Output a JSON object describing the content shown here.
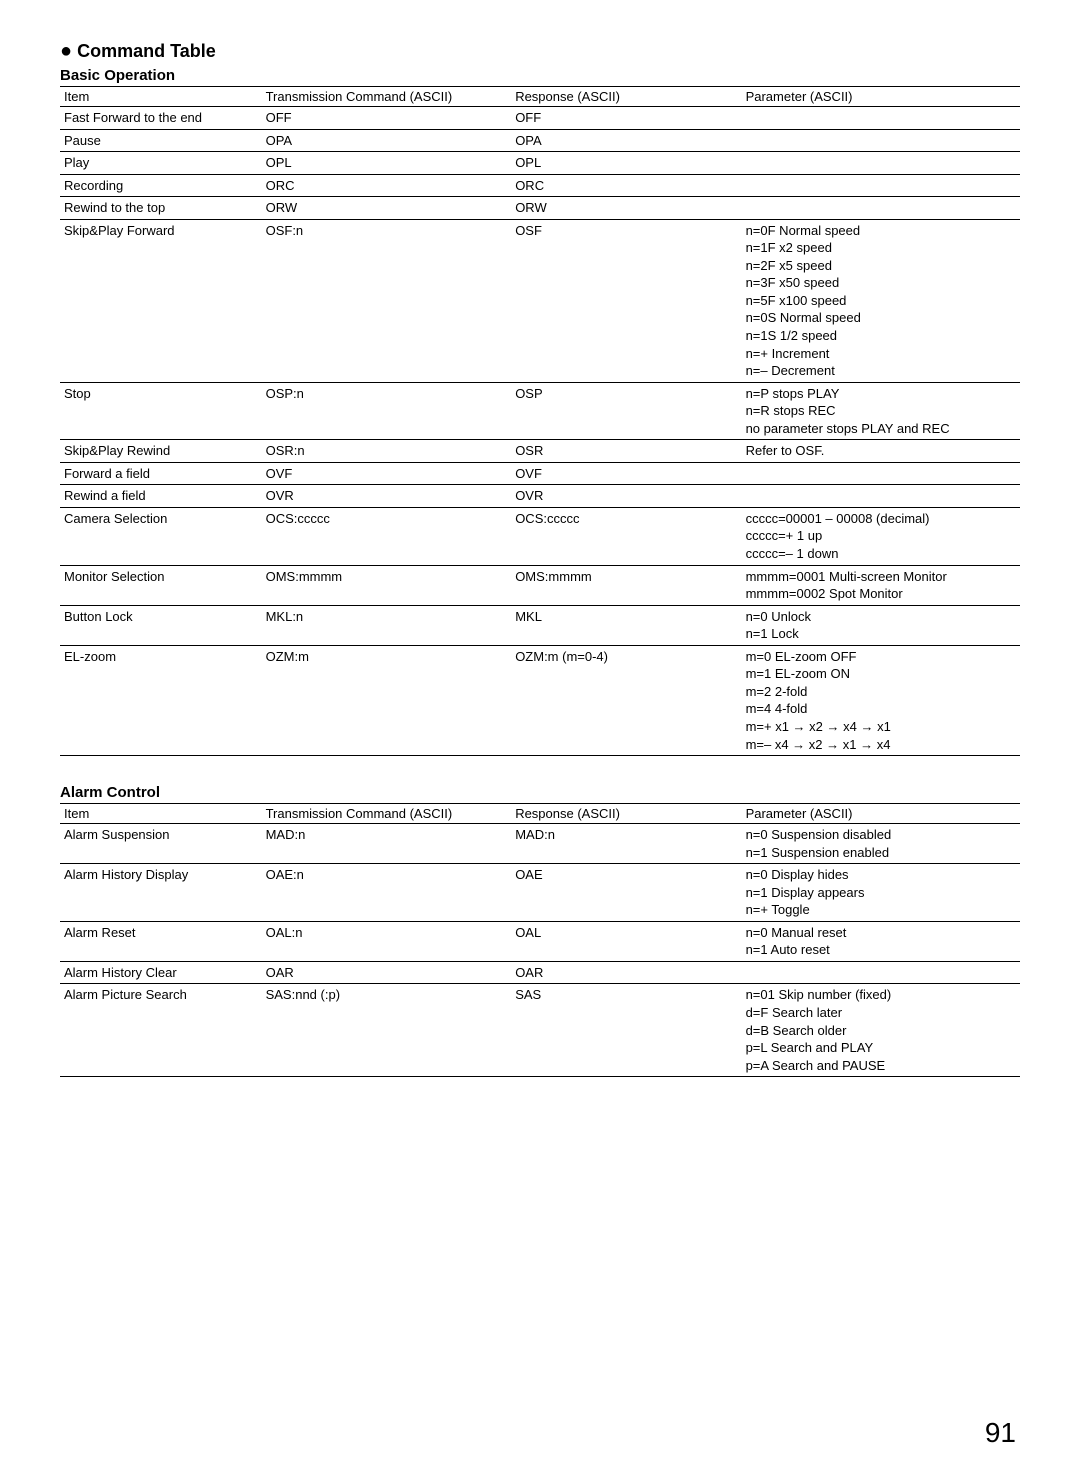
{
  "heading": "Command Table",
  "basic": {
    "title": "Basic Operation",
    "headers": [
      "Item",
      "Transmission Command (ASCII)",
      "Response (ASCII)",
      "Parameter (ASCII)"
    ],
    "rows": [
      {
        "item": "Fast Forward to the end",
        "trans": "OFF",
        "resp": "OFF",
        "param": ""
      },
      {
        "item": "Pause",
        "trans": "OPA",
        "resp": "OPA",
        "param": ""
      },
      {
        "item": "Play",
        "trans": "OPL",
        "resp": "OPL",
        "param": ""
      },
      {
        "item": "Recording",
        "trans": "ORC",
        "resp": "ORC",
        "param": ""
      },
      {
        "item": "Rewind to the top",
        "trans": "ORW",
        "resp": "ORW",
        "param": ""
      },
      {
        "item": "Skip&Play Forward",
        "trans": "OSF:n",
        "resp": "OSF",
        "param": "n=0F Normal speed\nn=1F x2 speed\nn=2F x5 speed\nn=3F x50 speed\nn=5F x100 speed\nn=0S Normal speed\nn=1S 1/2 speed\nn=+ Increment\nn=– Decrement"
      },
      {
        "item": "Stop",
        "trans": "OSP:n",
        "resp": "OSP",
        "param": "n=P stops PLAY\nn=R stops REC\nno parameter stops PLAY and REC"
      },
      {
        "item": "Skip&Play Rewind",
        "trans": "OSR:n",
        "resp": "OSR",
        "param": "Refer to OSF."
      },
      {
        "item": "Forward a field",
        "trans": "OVF",
        "resp": "OVF",
        "param": ""
      },
      {
        "item": "Rewind a field",
        "trans": "OVR",
        "resp": "OVR",
        "param": ""
      },
      {
        "item": "Camera Selection",
        "trans": "OCS:ccccc",
        "resp": "OCS:ccccc",
        "param": "ccccc=00001 – 00008 (decimal)\nccccc=+ 1 up\nccccc=– 1 down"
      },
      {
        "item": "Monitor Selection",
        "trans": "OMS:mmmm",
        "resp": "OMS:mmmm",
        "param": "mmmm=0001 Multi-screen Monitor\nmmmm=0002 Spot Monitor"
      },
      {
        "item": "Button Lock",
        "trans": "MKL:n",
        "resp": "MKL",
        "param": "n=0 Unlock\nn=1 Lock"
      },
      {
        "item": "EL-zoom",
        "trans": "OZM:m",
        "resp": "OZM:m (m=0-4)",
        "param": "m=0 EL-zoom OFF\nm=1 EL-zoom ON\nm=2 2-fold\nm=4 4-fold\nm=+ x1 → x2 → x4 → x1\nm=– x4 → x2 → x1 → x4"
      }
    ]
  },
  "alarm": {
    "title": "Alarm Control",
    "headers": [
      "Item",
      "Transmission Command (ASCII)",
      "Response (ASCII)",
      "Parameter (ASCII)"
    ],
    "rows": [
      {
        "item": "Alarm Suspension",
        "trans": "MAD:n",
        "resp": "MAD:n",
        "param": "n=0 Suspension disabled\nn=1 Suspension enabled"
      },
      {
        "item": "Alarm History Display",
        "trans": "OAE:n",
        "resp": "OAE",
        "param": "n=0 Display hides\nn=1 Display appears\nn=+ Toggle"
      },
      {
        "item": "Alarm Reset",
        "trans": "OAL:n",
        "resp": "OAL",
        "param": "n=0 Manual reset\nn=1 Auto reset"
      },
      {
        "item": "Alarm History Clear",
        "trans": "OAR",
        "resp": "OAR",
        "param": ""
      },
      {
        "item": "Alarm Picture Search",
        "trans": "SAS:nnd (:p)",
        "resp": "SAS",
        "param": "n=01 Skip number (fixed)\nd=F Search later\nd=B Search older\np=L Search and PLAY\np=A Search and PAUSE"
      }
    ]
  },
  "pageNumber": "91"
}
